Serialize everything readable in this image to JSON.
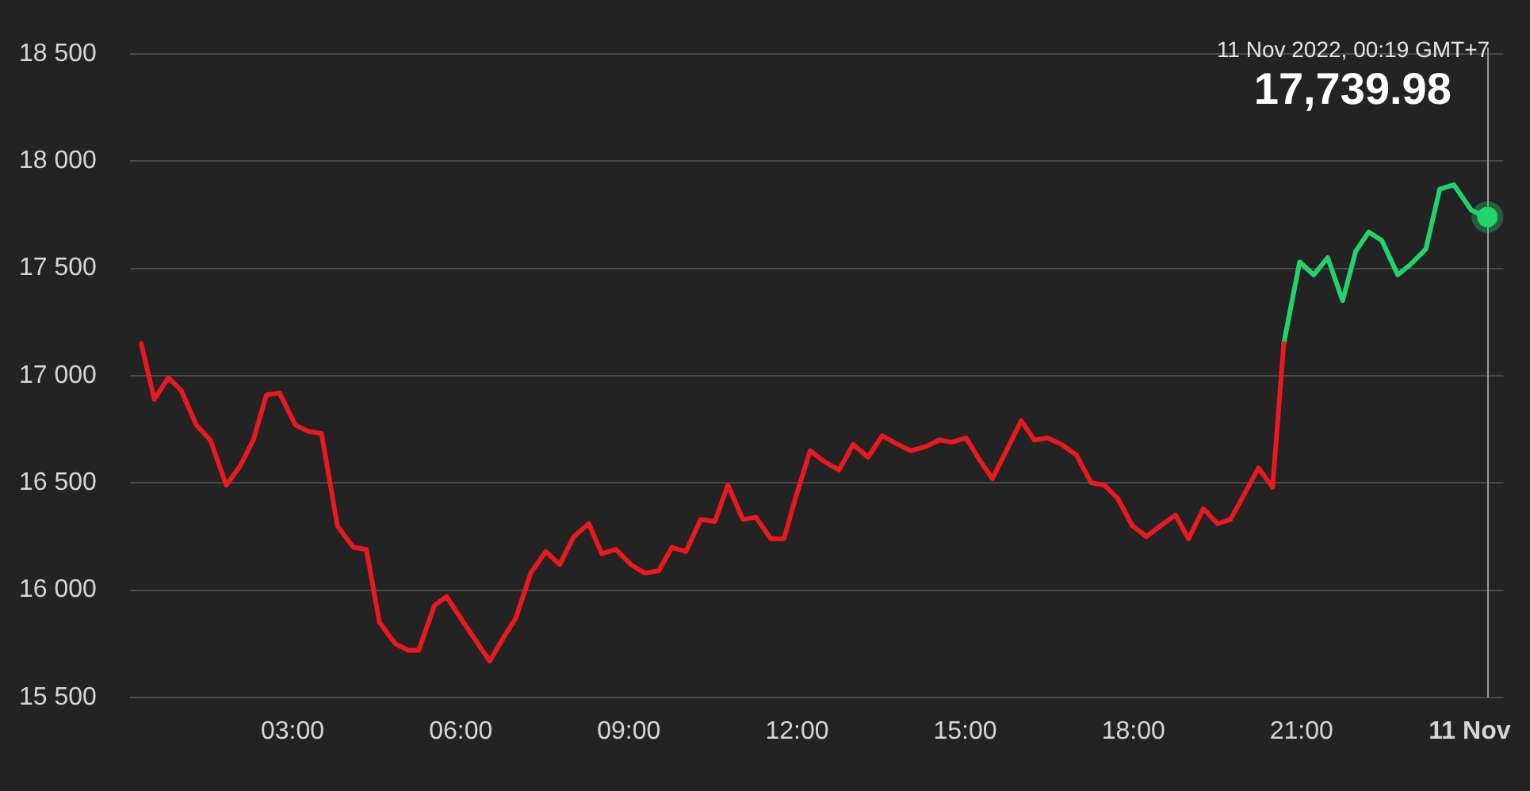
{
  "chart_data": {
    "type": "line",
    "series": [
      {
        "color": "#e8191f",
        "x": [
          "2022-11-10T00:18",
          "2022-11-10T00:32",
          "2022-11-10T00:47",
          "2022-11-10T01:01",
          "2022-11-10T01:17",
          "2022-11-10T01:32",
          "2022-11-10T01:49",
          "2022-11-10T02:04",
          "2022-11-10T02:18",
          "2022-11-10T02:32",
          "2022-11-10T02:46",
          "2022-11-10T03:03",
          "2022-11-10T03:17",
          "2022-11-10T03:31",
          "2022-11-10T03:48",
          "2022-11-10T04:05",
          "2022-11-10T04:19",
          "2022-11-10T04:33",
          "2022-11-10T04:50",
          "2022-11-10T05:04",
          "2022-11-10T05:15",
          "2022-11-10T05:32",
          "2022-11-10T05:45",
          "2022-11-10T06:03",
          "2022-11-10T06:17",
          "2022-11-10T06:31",
          "2022-11-10T06:46",
          "2022-11-10T06:59",
          "2022-11-10T07:15",
          "2022-11-10T07:31",
          "2022-11-10T07:46",
          "2022-11-10T08:01",
          "2022-11-10T08:17",
          "2022-11-10T08:31",
          "2022-11-10T08:46",
          "2022-11-10T09:02",
          "2022-11-10T09:17",
          "2022-11-10T09:32",
          "2022-11-10T09:46",
          "2022-11-10T10:01",
          "2022-11-10T10:17",
          "2022-11-10T10:32",
          "2022-11-10T10:46",
          "2022-11-10T11:02",
          "2022-11-10T11:16",
          "2022-11-10T11:32",
          "2022-11-10T11:46",
          "2022-11-10T11:59",
          "2022-11-10T12:14",
          "2022-11-10T12:29",
          "2022-11-10T12:45",
          "2022-11-10T13:00",
          "2022-11-10T13:16",
          "2022-11-10T13:31",
          "2022-11-10T13:48",
          "2022-11-10T14:02",
          "2022-11-10T14:18",
          "2022-11-10T14:32",
          "2022-11-10T14:46",
          "2022-11-10T15:01",
          "2022-11-10T15:15",
          "2022-11-10T15:29",
          "2022-11-10T15:44",
          "2022-11-10T16:00",
          "2022-11-10T16:14",
          "2022-11-10T16:28",
          "2022-11-10T16:43",
          "2022-11-10T16:59",
          "2022-11-10T17:15",
          "2022-11-10T17:29",
          "2022-11-10T17:43",
          "2022-11-10T17:59",
          "2022-11-10T18:14",
          "2022-11-10T18:29",
          "2022-11-10T18:45",
          "2022-11-10T18:59",
          "2022-11-10T19:15",
          "2022-11-10T19:30",
          "2022-11-10T19:44",
          "2022-11-10T19:59",
          "2022-11-10T20:14",
          "2022-11-10T20:29",
          "2022-11-10T20:41"
        ],
        "values": [
          17150,
          16890,
          16990,
          16930,
          16770,
          16700,
          16490,
          16580,
          16700,
          16910,
          16920,
          16770,
          16740,
          16730,
          16300,
          16200,
          16190,
          15850,
          15750,
          15720,
          15720,
          15930,
          15970,
          15850,
          15760,
          15670,
          15780,
          15870,
          16080,
          16180,
          16120,
          16250,
          16310,
          16170,
          16190,
          16120,
          16080,
          16090,
          16200,
          16180,
          16330,
          16320,
          16490,
          16330,
          16340,
          16240,
          16240,
          16440,
          16650,
          16600,
          16560,
          16680,
          16620,
          16720,
          16680,
          16650,
          16670,
          16700,
          16690,
          16710,
          16610,
          16520,
          16650,
          16790,
          16700,
          16710,
          16680,
          16630,
          16500,
          16490,
          16430,
          16300,
          16250,
          16300,
          16350,
          16240,
          16380,
          16310,
          16330,
          16450,
          16570,
          16480,
          17150
        ]
      },
      {
        "color": "#22d36b",
        "x": [
          "2022-11-10T20:41",
          "2022-11-10T20:58",
          "2022-11-10T21:13",
          "2022-11-10T21:28",
          "2022-11-10T21:44",
          "2022-11-10T21:58",
          "2022-11-10T22:12",
          "2022-11-10T22:26",
          "2022-11-10T22:43",
          "2022-11-10T22:57",
          "2022-11-10T23:13",
          "2022-11-10T23:28",
          "2022-11-10T23:43",
          "2022-11-11T00:02",
          "2022-11-11T00:19"
        ],
        "values": [
          17150,
          17530,
          17470,
          17550,
          17350,
          17580,
          17670,
          17630,
          17470,
          17520,
          17590,
          17870,
          17890,
          17770,
          17740
        ]
      }
    ],
    "xlim": [
      "2022-11-10T00:06",
      "2022-11-11T00:36"
    ],
    "xticks": [
      {
        "value": "2022-11-10T03:00",
        "label": "03:00"
      },
      {
        "value": "2022-11-10T06:00",
        "label": "06:00"
      },
      {
        "value": "2022-11-10T09:00",
        "label": "09:00"
      },
      {
        "value": "2022-11-10T12:00",
        "label": "12:00"
      },
      {
        "value": "2022-11-10T15:00",
        "label": "15:00"
      },
      {
        "value": "2022-11-10T18:00",
        "label": "18:00"
      },
      {
        "value": "2022-11-10T21:00",
        "label": "21:00"
      },
      {
        "value": "2022-11-11T00:00",
        "label": "11 Nov"
      }
    ],
    "ylim": [
      15500,
      18500
    ],
    "yticks": [
      {
        "value": 15500,
        "label": "15 500"
      },
      {
        "value": 16000,
        "label": "16 000"
      },
      {
        "value": 16500,
        "label": "16 500"
      },
      {
        "value": 17000,
        "label": "17 000"
      },
      {
        "value": 17500,
        "label": "17 500"
      },
      {
        "value": 18000,
        "label": "18 000"
      },
      {
        "value": 18500,
        "label": "18 500"
      }
    ],
    "grid": "y",
    "line_style": "solid",
    "ref_lines": [
      {
        "axis": "x",
        "value": "2022-11-11T00:19",
        "label": "11 Nov 2022, 00:19 GMT+7",
        "color": "#9a9a9a"
      }
    ],
    "annotations": [
      {
        "text": "17,739.98",
        "x": "2022-11-11T00:19",
        "y": 17740
      }
    ]
  }
}
